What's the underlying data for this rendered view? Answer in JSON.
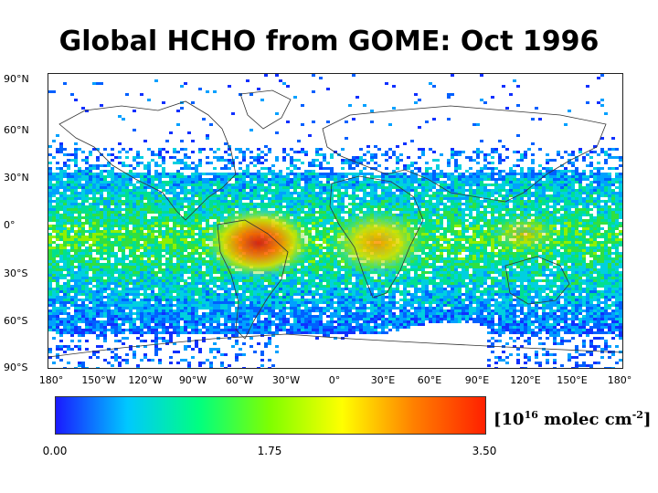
{
  "title": "Global HCHO from GOME: Oct 1996",
  "lat_labels": [
    "90°N",
    "60°N",
    "30°N",
    "0°",
    "30°S",
    "60°S",
    "90°S"
  ],
  "lon_labels": [
    "180°",
    "150°W",
    "120°W",
    "90°W",
    "60°W",
    "30°W",
    "0°",
    "30°E",
    "60°E",
    "90°E",
    "120°E",
    "150°E",
    "180°"
  ],
  "colorbar": {
    "ticks": [
      "0.00",
      "1.75",
      "3.50"
    ],
    "min": 0,
    "max": 3.5,
    "colors": [
      "#1a1aff",
      "#00c8ff",
      "#00ff80",
      "#80ff00",
      "#ffff00",
      "#ff8000",
      "#ff2000"
    ]
  },
  "units": {
    "prefix": "[10",
    "exp1": "16",
    "middle": " molec cm",
    "exp2": "-2",
    "suffix": "]"
  }
}
